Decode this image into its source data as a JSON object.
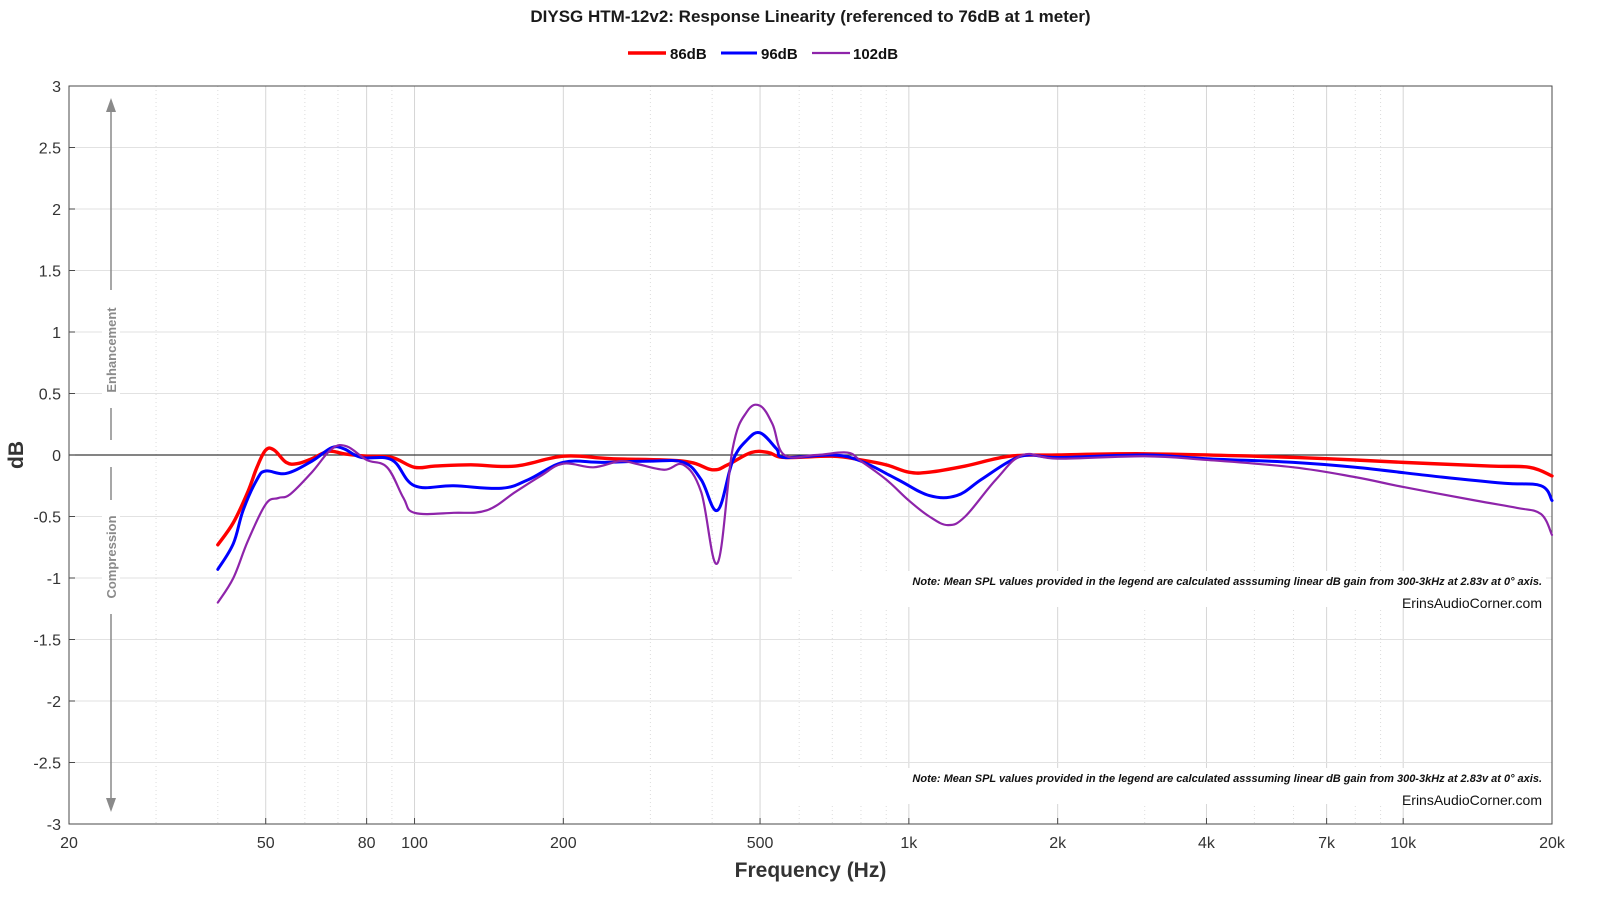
{
  "chart_data": {
    "type": "line",
    "title": "DIYSG HTM-12v2: Response Linearity (referenced to 76dB at 1 meter)",
    "xlabel": "Frequency (Hz)",
    "ylabel": "dB",
    "xscale": "log",
    "xlim": [
      20,
      20000
    ],
    "ylim": [
      -3,
      3
    ],
    "x_ticks": [
      20,
      50,
      80,
      100,
      200,
      500,
      1000,
      2000,
      4000,
      7000,
      10000,
      20000
    ],
    "x_tick_labels": [
      "20",
      "50",
      "80",
      "100",
      "200",
      "500",
      "1k",
      "2k",
      "4k",
      "7k",
      "10k",
      "20k"
    ],
    "y_ticks": [
      -3,
      -2.5,
      -2,
      -1.5,
      -1,
      -0.5,
      0,
      0.5,
      1,
      1.5,
      2,
      2.5,
      3
    ],
    "y_tick_labels": [
      "-3",
      "-2.5",
      "-2",
      "-1.5",
      "-1",
      "-0.5",
      "0",
      "0.5",
      "1",
      "1.5",
      "2",
      "2.5",
      "3"
    ],
    "grid": true,
    "legend_position": "top-center",
    "series": [
      {
        "name": "86dB",
        "color": "#ff0000",
        "points": [
          [
            40,
            -0.73
          ],
          [
            43,
            -0.55
          ],
          [
            46,
            -0.3
          ],
          [
            48,
            -0.1
          ],
          [
            50,
            0.04
          ],
          [
            52,
            0.04
          ],
          [
            55,
            -0.06
          ],
          [
            58,
            -0.07
          ],
          [
            62,
            -0.03
          ],
          [
            67,
            0.03
          ],
          [
            72,
            0.01
          ],
          [
            80,
            -0.01
          ],
          [
            90,
            -0.02
          ],
          [
            100,
            -0.1
          ],
          [
            110,
            -0.09
          ],
          [
            130,
            -0.08
          ],
          [
            160,
            -0.09
          ],
          [
            200,
            -0.01
          ],
          [
            250,
            -0.03
          ],
          [
            350,
            -0.05
          ],
          [
            400,
            -0.12
          ],
          [
            430,
            -0.08
          ],
          [
            480,
            0.02
          ],
          [
            520,
            0.02
          ],
          [
            560,
            -0.02
          ],
          [
            700,
            -0.01
          ],
          [
            800,
            -0.04
          ],
          [
            900,
            -0.08
          ],
          [
            1000,
            -0.14
          ],
          [
            1100,
            -0.14
          ],
          [
            1300,
            -0.09
          ],
          [
            1600,
            -0.01
          ],
          [
            2000,
            0.0
          ],
          [
            3000,
            0.01
          ],
          [
            5000,
            -0.01
          ],
          [
            7000,
            -0.03
          ],
          [
            10000,
            -0.06
          ],
          [
            15000,
            -0.09
          ],
          [
            18000,
            -0.1
          ],
          [
            20000,
            -0.17
          ]
        ]
      },
      {
        "name": "96dB",
        "color": "#0000ff",
        "points": [
          [
            40,
            -0.93
          ],
          [
            43,
            -0.72
          ],
          [
            45,
            -0.45
          ],
          [
            48,
            -0.2
          ],
          [
            50,
            -0.13
          ],
          [
            55,
            -0.15
          ],
          [
            62,
            -0.05
          ],
          [
            68,
            0.06
          ],
          [
            72,
            0.05
          ],
          [
            78,
            -0.02
          ],
          [
            90,
            -0.04
          ],
          [
            100,
            -0.25
          ],
          [
            120,
            -0.25
          ],
          [
            150,
            -0.27
          ],
          [
            170,
            -0.2
          ],
          [
            200,
            -0.06
          ],
          [
            240,
            -0.06
          ],
          [
            300,
            -0.05
          ],
          [
            350,
            -0.06
          ],
          [
            380,
            -0.2
          ],
          [
            410,
            -0.45
          ],
          [
            440,
            -0.05
          ],
          [
            470,
            0.12
          ],
          [
            500,
            0.18
          ],
          [
            540,
            0.05
          ],
          [
            560,
            -0.02
          ],
          [
            700,
            0.0
          ],
          [
            800,
            -0.05
          ],
          [
            950,
            -0.2
          ],
          [
            1100,
            -0.33
          ],
          [
            1250,
            -0.33
          ],
          [
            1400,
            -0.2
          ],
          [
            1600,
            -0.05
          ],
          [
            1750,
            0.0
          ],
          [
            2000,
            -0.02
          ],
          [
            3000,
            0.0
          ],
          [
            4000,
            -0.03
          ],
          [
            6000,
            -0.06
          ],
          [
            8000,
            -0.1
          ],
          [
            12000,
            -0.18
          ],
          [
            16000,
            -0.23
          ],
          [
            19000,
            -0.25
          ],
          [
            20000,
            -0.37
          ]
        ]
      },
      {
        "name": "102dB",
        "color": "#8e24aa",
        "points": [
          [
            40,
            -1.2
          ],
          [
            43,
            -1.0
          ],
          [
            46,
            -0.7
          ],
          [
            50,
            -0.4
          ],
          [
            53,
            -0.35
          ],
          [
            56,
            -0.32
          ],
          [
            62,
            -0.14
          ],
          [
            68,
            0.05
          ],
          [
            73,
            0.07
          ],
          [
            80,
            -0.04
          ],
          [
            88,
            -0.1
          ],
          [
            95,
            -0.35
          ],
          [
            100,
            -0.47
          ],
          [
            120,
            -0.47
          ],
          [
            140,
            -0.45
          ],
          [
            160,
            -0.3
          ],
          [
            180,
            -0.17
          ],
          [
            200,
            -0.07
          ],
          [
            230,
            -0.1
          ],
          [
            260,
            -0.05
          ],
          [
            280,
            -0.07
          ],
          [
            320,
            -0.12
          ],
          [
            350,
            -0.08
          ],
          [
            380,
            -0.3
          ],
          [
            410,
            -0.88
          ],
          [
            440,
            0.05
          ],
          [
            470,
            0.35
          ],
          [
            500,
            0.4
          ],
          [
            530,
            0.25
          ],
          [
            560,
            0.0
          ],
          [
            650,
            0.0
          ],
          [
            750,
            0.02
          ],
          [
            800,
            -0.05
          ],
          [
            900,
            -0.2
          ],
          [
            1000,
            -0.37
          ],
          [
            1100,
            -0.5
          ],
          [
            1200,
            -0.57
          ],
          [
            1300,
            -0.5
          ],
          [
            1500,
            -0.2
          ],
          [
            1700,
            0.0
          ],
          [
            2000,
            -0.03
          ],
          [
            3000,
            -0.01
          ],
          [
            4000,
            -0.04
          ],
          [
            6000,
            -0.1
          ],
          [
            8000,
            -0.18
          ],
          [
            10000,
            -0.26
          ],
          [
            14000,
            -0.37
          ],
          [
            17000,
            -0.43
          ],
          [
            19000,
            -0.48
          ],
          [
            20000,
            -0.65
          ]
        ]
      }
    ],
    "annotations": {
      "enhancement_label": "Enhancement",
      "compression_label": "Compression",
      "note": "Note: Mean SPL values provided in the legend are calculated asssuming linear dB gain from 300-3kHz at 2.83v at 0° axis.",
      "site": "ErinsAudioCorner.com"
    }
  }
}
